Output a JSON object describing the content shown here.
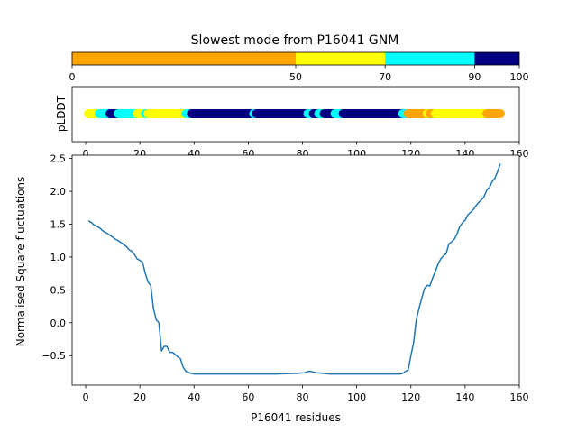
{
  "figure_title": "Slowest mode from P16041 GNM",
  "colorbar": {
    "segments": [
      {
        "from": 0,
        "to": 50,
        "color": "#ffa500"
      },
      {
        "from": 50,
        "to": 70,
        "color": "#ffff00"
      },
      {
        "from": 70,
        "to": 90,
        "color": "#00ffff"
      },
      {
        "from": 90,
        "to": 100,
        "color": "#000080"
      }
    ],
    "tick_labels": [
      "0",
      "50",
      "70",
      "90",
      "100"
    ],
    "tick_values": [
      0,
      50,
      70,
      90,
      100
    ]
  },
  "plddt_strip": {
    "ylabel": "pLDDT",
    "xlim": [
      -5,
      160
    ],
    "ticks": [
      0,
      20,
      40,
      60,
      80,
      100,
      120,
      140,
      160
    ],
    "tick_labels": [
      "0",
      "20",
      "40",
      "60",
      "80",
      "100",
      "120",
      "140",
      "160"
    ],
    "segments": [
      {
        "start": 1,
        "end": 5,
        "color": "#ffff00"
      },
      {
        "start": 5,
        "end": 9,
        "color": "#00ffff"
      },
      {
        "start": 9,
        "end": 12,
        "color": "#000080"
      },
      {
        "start": 12,
        "end": 19,
        "color": "#00ffff"
      },
      {
        "start": 19,
        "end": 22,
        "color": "#ffff00"
      },
      {
        "start": 22,
        "end": 23,
        "color": "#00ffff"
      },
      {
        "start": 23,
        "end": 37,
        "color": "#ffff00"
      },
      {
        "start": 37,
        "end": 39,
        "color": "#00ffff"
      },
      {
        "start": 39,
        "end": 62,
        "color": "#000080"
      },
      {
        "start": 62,
        "end": 63,
        "color": "#00ffff"
      },
      {
        "start": 63,
        "end": 82,
        "color": "#000080"
      },
      {
        "start": 82,
        "end": 84,
        "color": "#00ffff"
      },
      {
        "start": 84,
        "end": 86,
        "color": "#000080"
      },
      {
        "start": 86,
        "end": 88,
        "color": "#00ffff"
      },
      {
        "start": 88,
        "end": 92,
        "color": "#000080"
      },
      {
        "start": 92,
        "end": 95,
        "color": "#00ffff"
      },
      {
        "start": 95,
        "end": 117,
        "color": "#000080"
      },
      {
        "start": 117,
        "end": 119,
        "color": "#00ffff"
      },
      {
        "start": 119,
        "end": 126,
        "color": "#ffa500"
      },
      {
        "start": 126,
        "end": 127,
        "color": "#ffff00"
      },
      {
        "start": 127,
        "end": 129,
        "color": "#ffa500"
      },
      {
        "start": 129,
        "end": 148,
        "color": "#ffff00"
      },
      {
        "start": 148,
        "end": 153,
        "color": "#ffa500"
      }
    ]
  },
  "chart_data": {
    "type": "line",
    "xlabel": "P16041 residues",
    "ylabel": "Normalised Square fluctuations",
    "xlim": [
      -5,
      160
    ],
    "ylim": [
      -0.95,
      2.55
    ],
    "xticks": [
      0,
      20,
      40,
      60,
      80,
      100,
      120,
      140,
      160
    ],
    "xtick_labels": [
      "0",
      "20",
      "40",
      "60",
      "80",
      "100",
      "120",
      "140",
      "160"
    ],
    "yticks": [
      -0.5,
      0.0,
      0.5,
      1.0,
      1.5,
      2.0,
      2.5
    ],
    "ytick_labels": [
      "−0.5",
      "0.0",
      "0.5",
      "1.0",
      "1.5",
      "2.0",
      "2.5"
    ],
    "line_color": "#1f77b4",
    "series": [
      {
        "x": [
          1,
          2,
          3,
          4,
          5,
          6,
          7,
          8,
          9,
          10,
          11,
          12,
          13,
          14,
          15,
          16,
          17,
          18,
          19,
          20,
          21,
          22,
          23,
          24,
          25,
          26,
          27,
          28,
          29,
          30,
          31,
          32,
          33,
          34,
          35,
          36,
          37,
          38,
          40,
          45,
          50,
          60,
          70,
          78,
          81,
          82,
          83,
          85,
          90,
          100,
          110,
          116,
          117,
          118,
          119,
          120,
          121,
          122,
          123,
          124,
          125,
          126,
          127,
          128,
          129,
          130,
          131,
          132,
          133,
          134,
          135,
          136,
          137,
          138,
          139,
          140,
          141,
          142,
          143,
          144,
          145,
          146,
          147,
          148,
          149,
          150,
          151,
          152,
          153
        ],
        "y": [
          1.55,
          1.53,
          1.49,
          1.47,
          1.45,
          1.41,
          1.38,
          1.36,
          1.33,
          1.3,
          1.27,
          1.25,
          1.22,
          1.19,
          1.16,
          1.11,
          1.09,
          1.04,
          0.97,
          0.95,
          0.92,
          0.75,
          0.62,
          0.57,
          0.22,
          0.05,
          0.0,
          -0.43,
          -0.36,
          -0.36,
          -0.45,
          -0.45,
          -0.48,
          -0.52,
          -0.55,
          -0.68,
          -0.74,
          -0.76,
          -0.78,
          -0.78,
          -0.78,
          -0.78,
          -0.78,
          -0.77,
          -0.76,
          -0.74,
          -0.74,
          -0.76,
          -0.78,
          -0.78,
          -0.78,
          -0.78,
          -0.77,
          -0.74,
          -0.72,
          -0.5,
          -0.3,
          0.05,
          0.22,
          0.37,
          0.52,
          0.57,
          0.56,
          0.68,
          0.78,
          0.89,
          0.97,
          1.02,
          1.05,
          1.2,
          1.23,
          1.27,
          1.35,
          1.46,
          1.52,
          1.56,
          1.64,
          1.68,
          1.72,
          1.78,
          1.83,
          1.87,
          1.92,
          2.02,
          2.06,
          2.15,
          2.2,
          2.3,
          2.42
        ]
      }
    ]
  }
}
